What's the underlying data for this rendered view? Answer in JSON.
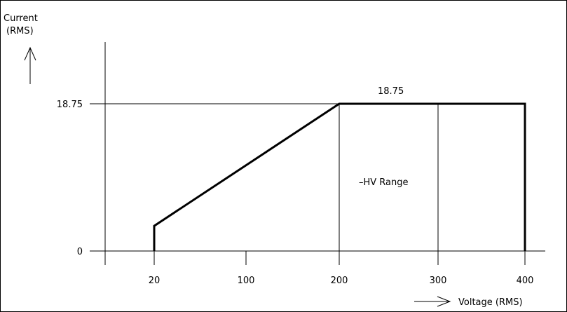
{
  "chart_data": {
    "type": "line",
    "ylabel_line1": "Current",
    "ylabel_line2": "(RMS)",
    "xlabel": "Voltage  (RMS)",
    "x_ticks": [
      "20",
      "100",
      "200",
      "300",
      "400"
    ],
    "x_tick_values": [
      20,
      100,
      200,
      300,
      400
    ],
    "y_ticks": [
      "0",
      "18.75"
    ],
    "y_tick_values": [
      0,
      18.75
    ],
    "xlim": [
      -32,
      400
    ],
    "ylim": [
      0,
      18.75
    ],
    "series": [
      {
        "x": [
          20,
          20,
          200,
          400,
          400
        ],
        "y": [
          0,
          3.2,
          18.75,
          18.75,
          0
        ]
      }
    ],
    "annotations": {
      "top_value": "18.75",
      "range_label": "–HV Range"
    }
  }
}
